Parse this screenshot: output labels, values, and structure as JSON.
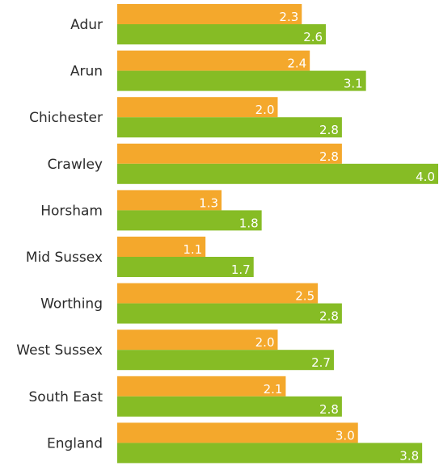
{
  "chart_data": {
    "type": "bar",
    "orientation": "horizontal",
    "categories": [
      "Adur",
      "Arun",
      "Chichester",
      "Crawley",
      "Horsham",
      "Mid Sussex",
      "Worthing",
      "West Sussex",
      "South East",
      "England"
    ],
    "series": [
      {
        "values": [
          2.3,
          2.4,
          2.0,
          2.8,
          1.3,
          1.1,
          2.5,
          2.0,
          2.1,
          3.0
        ],
        "color": "#F4A82C"
      },
      {
        "values": [
          2.6,
          3.1,
          2.8,
          4.0,
          1.8,
          1.7,
          2.8,
          2.7,
          2.8,
          3.8
        ],
        "color": "#86BC25"
      }
    ],
    "xlim": [
      0,
      4.0
    ],
    "value_labels": "inside-end",
    "grid": false,
    "legend": "none",
    "title": "",
    "xlabel": "",
    "ylabel": ""
  }
}
